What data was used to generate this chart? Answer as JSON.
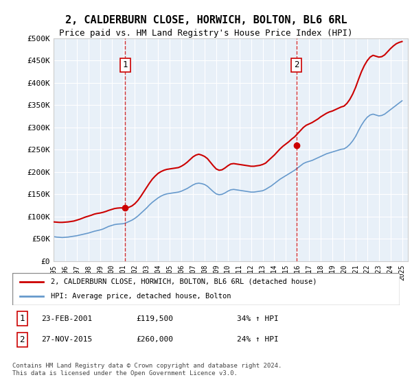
{
  "title": "2, CALDERBURN CLOSE, HORWICH, BOLTON, BL6 6RL",
  "subtitle": "Price paid vs. HM Land Registry's House Price Index (HPI)",
  "ylabel": "",
  "xlabel": "",
  "background_color": "#e8f0f8",
  "plot_bg": "#e8f0f8",
  "ylim": [
    0,
    500000
  ],
  "xlim_start": 1995.0,
  "xlim_end": 2025.5,
  "yticks": [
    0,
    50000,
    100000,
    150000,
    200000,
    250000,
    300000,
    350000,
    400000,
    450000,
    500000
  ],
  "ytick_labels": [
    "£0",
    "£50K",
    "£100K",
    "£150K",
    "£200K",
    "£250K",
    "£300K",
    "£350K",
    "£400K",
    "£450K",
    "£500K"
  ],
  "xtick_years": [
    1995,
    1996,
    1997,
    1998,
    1999,
    2000,
    2001,
    2002,
    2003,
    2004,
    2005,
    2006,
    2007,
    2008,
    2009,
    2010,
    2011,
    2012,
    2013,
    2014,
    2015,
    2016,
    2017,
    2018,
    2019,
    2020,
    2021,
    2022,
    2023,
    2024,
    2025
  ],
  "line_property_color": "#cc0000",
  "line_hpi_color": "#6699cc",
  "sale1_x": 2001.15,
  "sale1_y": 119500,
  "sale2_x": 2015.9,
  "sale2_y": 260000,
  "legend_label_property": "2, CALDERBURN CLOSE, HORWICH, BOLTON, BL6 6RL (detached house)",
  "legend_label_hpi": "HPI: Average price, detached house, Bolton",
  "annotation1_label": "1",
  "annotation1_date": "23-FEB-2001",
  "annotation1_price": "£119,500",
  "annotation1_hpi": "34% ↑ HPI",
  "annotation2_label": "2",
  "annotation2_date": "27-NOV-2015",
  "annotation2_price": "£260,000",
  "annotation2_hpi": "24% ↑ HPI",
  "copyright_text": "Contains HM Land Registry data © Crown copyright and database right 2024.\nThis data is licensed under the Open Government Licence v3.0.",
  "hpi_data_x": [
    1995.0,
    1995.25,
    1995.5,
    1995.75,
    1996.0,
    1996.25,
    1996.5,
    1996.75,
    1997.0,
    1997.25,
    1997.5,
    1997.75,
    1998.0,
    1998.25,
    1998.5,
    1998.75,
    1999.0,
    1999.25,
    1999.5,
    1999.75,
    2000.0,
    2000.25,
    2000.5,
    2000.75,
    2001.0,
    2001.25,
    2001.5,
    2001.75,
    2002.0,
    2002.25,
    2002.5,
    2002.75,
    2003.0,
    2003.25,
    2003.5,
    2003.75,
    2004.0,
    2004.25,
    2004.5,
    2004.75,
    2005.0,
    2005.25,
    2005.5,
    2005.75,
    2006.0,
    2006.25,
    2006.5,
    2006.75,
    2007.0,
    2007.25,
    2007.5,
    2007.75,
    2008.0,
    2008.25,
    2008.5,
    2008.75,
    2009.0,
    2009.25,
    2009.5,
    2009.75,
    2010.0,
    2010.25,
    2010.5,
    2010.75,
    2011.0,
    2011.25,
    2011.5,
    2011.75,
    2012.0,
    2012.25,
    2012.5,
    2012.75,
    2013.0,
    2013.25,
    2013.5,
    2013.75,
    2014.0,
    2014.25,
    2014.5,
    2014.75,
    2015.0,
    2015.25,
    2015.5,
    2015.75,
    2016.0,
    2016.25,
    2016.5,
    2016.75,
    2017.0,
    2017.25,
    2017.5,
    2017.75,
    2018.0,
    2018.25,
    2018.5,
    2018.75,
    2019.0,
    2019.25,
    2019.5,
    2019.75,
    2020.0,
    2020.25,
    2020.5,
    2020.75,
    2021.0,
    2021.25,
    2021.5,
    2021.75,
    2022.0,
    2022.25,
    2022.5,
    2022.75,
    2023.0,
    2023.25,
    2023.5,
    2023.75,
    2024.0,
    2024.25,
    2024.5,
    2024.75,
    2025.0
  ],
  "hpi_data_y": [
    55000,
    54000,
    53500,
    53000,
    53500,
    54000,
    55000,
    56000,
    57000,
    58500,
    60000,
    61500,
    63000,
    65000,
    67000,
    68500,
    70000,
    72000,
    75000,
    78000,
    80000,
    82000,
    83000,
    83500,
    84000,
    86000,
    89000,
    92000,
    96000,
    101000,
    107000,
    113000,
    119000,
    126000,
    132000,
    137000,
    142000,
    146000,
    149000,
    151000,
    152000,
    153000,
    154000,
    155000,
    157000,
    160000,
    163000,
    167000,
    171000,
    174000,
    175000,
    174000,
    172000,
    168000,
    162000,
    156000,
    151000,
    149000,
    150000,
    153000,
    157000,
    160000,
    161000,
    160000,
    159000,
    158000,
    157000,
    156000,
    155000,
    155000,
    156000,
    157000,
    158000,
    161000,
    165000,
    169000,
    174000,
    179000,
    184000,
    188000,
    192000,
    196000,
    200000,
    204000,
    209000,
    214000,
    219000,
    222000,
    224000,
    226000,
    229000,
    232000,
    235000,
    238000,
    241000,
    243000,
    245000,
    247000,
    249000,
    251000,
    252000,
    256000,
    262000,
    270000,
    280000,
    293000,
    305000,
    315000,
    323000,
    328000,
    330000,
    328000,
    326000,
    327000,
    330000,
    335000,
    340000,
    345000,
    350000,
    355000,
    360000
  ],
  "prop_data_x": [
    1995.0,
    1995.25,
    1995.5,
    1995.75,
    1996.0,
    1996.25,
    1996.5,
    1996.75,
    1997.0,
    1997.25,
    1997.5,
    1997.75,
    1998.0,
    1998.25,
    1998.5,
    1998.75,
    1999.0,
    1999.25,
    1999.5,
    1999.75,
    2000.0,
    2000.25,
    2000.5,
    2000.75,
    2001.0,
    2001.25,
    2001.5,
    2001.75,
    2002.0,
    2002.25,
    2002.5,
    2002.75,
    2003.0,
    2003.25,
    2003.5,
    2003.75,
    2004.0,
    2004.25,
    2004.5,
    2004.75,
    2005.0,
    2005.25,
    2005.5,
    2005.75,
    2006.0,
    2006.25,
    2006.5,
    2006.75,
    2007.0,
    2007.25,
    2007.5,
    2007.75,
    2008.0,
    2008.25,
    2008.5,
    2008.75,
    2009.0,
    2009.25,
    2009.5,
    2009.75,
    2010.0,
    2010.25,
    2010.5,
    2010.75,
    2011.0,
    2011.25,
    2011.5,
    2011.75,
    2012.0,
    2012.25,
    2012.5,
    2012.75,
    2013.0,
    2013.25,
    2013.5,
    2013.75,
    2014.0,
    2014.25,
    2014.5,
    2014.75,
    2015.0,
    2015.25,
    2015.5,
    2015.75,
    2016.0,
    2016.25,
    2016.5,
    2016.75,
    2017.0,
    2017.25,
    2017.5,
    2017.75,
    2018.0,
    2018.25,
    2018.5,
    2018.75,
    2019.0,
    2019.25,
    2019.5,
    2019.75,
    2020.0,
    2020.25,
    2020.5,
    2020.75,
    2021.0,
    2021.25,
    2021.5,
    2021.75,
    2022.0,
    2022.25,
    2022.5,
    2022.75,
    2023.0,
    2023.25,
    2023.5,
    2023.75,
    2024.0,
    2024.25,
    2024.5,
    2024.75,
    2025.0
  ],
  "prop_data_y": [
    88000,
    87500,
    87000,
    87000,
    87500,
    88000,
    89000,
    90000,
    92000,
    94000,
    96500,
    99000,
    101000,
    103000,
    105500,
    107000,
    108000,
    109500,
    111500,
    114000,
    116000,
    118000,
    119000,
    119500,
    119500,
    119500,
    121000,
    124000,
    129000,
    136000,
    145000,
    155000,
    165000,
    175000,
    184000,
    191000,
    197000,
    201000,
    204000,
    206000,
    207000,
    208000,
    209000,
    210000,
    213000,
    217000,
    222000,
    228000,
    234000,
    238000,
    240000,
    238000,
    235000,
    230000,
    222000,
    214000,
    207000,
    204000,
    205000,
    209000,
    214000,
    218000,
    219000,
    218000,
    217000,
    216000,
    215000,
    214000,
    213000,
    213000,
    214000,
    215000,
    217000,
    220000,
    226000,
    232000,
    238000,
    245000,
    252000,
    258000,
    263000,
    268000,
    274000,
    279000,
    286000,
    293000,
    300000,
    305000,
    308000,
    311000,
    315000,
    319000,
    324000,
    328000,
    332000,
    335000,
    337000,
    340000,
    343000,
    346000,
    348000,
    354000,
    363000,
    375000,
    390000,
    408000,
    425000,
    439000,
    450000,
    458000,
    462000,
    460000,
    458000,
    459000,
    463000,
    470000,
    477000,
    483000,
    488000,
    491000,
    493000
  ]
}
